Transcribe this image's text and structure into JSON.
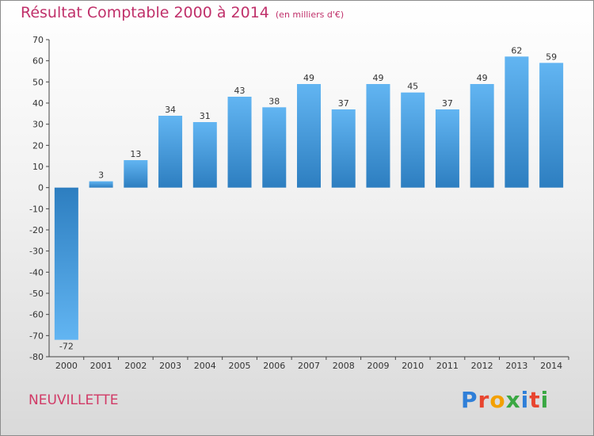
{
  "header": {
    "title": "Résultat Comptable 2000 à 2014",
    "unit": "(en milliers d'€)"
  },
  "footer": {
    "place": "NEUVILLETTE",
    "logo": "Proxiti",
    "logo_colors": [
      "#2f7fd8",
      "#e8452f",
      "#f3a000",
      "#3aa843",
      "#2f7fd8",
      "#e8452f",
      "#3aa843"
    ]
  },
  "colors": {
    "bar_top": "#62b5f2",
    "bar_bottom": "#2d7ec0",
    "title": "#c0306a",
    "place": "#d13a66"
  },
  "chart_data": {
    "type": "bar",
    "title": "Résultat Comptable 2000 à 2014",
    "xlabel": "",
    "ylabel": "",
    "ylim": [
      -80,
      70
    ],
    "yticks": [
      70,
      60,
      50,
      40,
      30,
      20,
      10,
      0,
      -10,
      -20,
      -30,
      -40,
      -50,
      -60,
      -70,
      -80
    ],
    "grid": false,
    "categories": [
      "2000",
      "2001",
      "2002",
      "2003",
      "2004",
      "2005",
      "2006",
      "2007",
      "2008",
      "2009",
      "2010",
      "2011",
      "2012",
      "2013",
      "2014"
    ],
    "values": [
      -72,
      3,
      13,
      34,
      31,
      43,
      38,
      49,
      37,
      49,
      45,
      37,
      49,
      62,
      59
    ]
  }
}
